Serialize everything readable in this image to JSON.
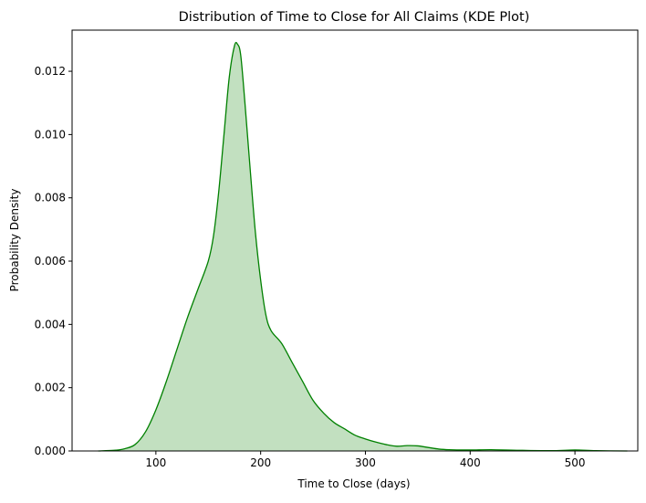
{
  "chart_data": {
    "type": "area",
    "title": "Distribution of Time to Close for All Claims (KDE Plot)",
    "xlabel": "Time to Close (days)",
    "ylabel": "Probability Density",
    "xlim": [
      20,
      560
    ],
    "ylim": [
      0,
      0.0133
    ],
    "xticks": [
      100,
      200,
      300,
      400,
      500
    ],
    "xtick_labels": [
      "100",
      "200",
      "300",
      "400",
      "500"
    ],
    "yticks": [
      0,
      0.002,
      0.004,
      0.006,
      0.008,
      0.01,
      0.012
    ],
    "ytick_labels": [
      "0.000",
      "0.002",
      "0.004",
      "0.006",
      "0.008",
      "0.010",
      "0.012"
    ],
    "grid": false,
    "legend": "none",
    "colors": {
      "line": "#008000",
      "fill": "#c2e0c0"
    },
    "series": [
      {
        "x": [
          45,
          60,
          70,
          80,
          90,
          100,
          110,
          120,
          130,
          140,
          150,
          155,
          160,
          165,
          170,
          175,
          178,
          181,
          185,
          190,
          195,
          200,
          205,
          210,
          220,
          230,
          240,
          250,
          260,
          270,
          280,
          290,
          300,
          310,
          320,
          330,
          340,
          350,
          360,
          370,
          380,
          400,
          420,
          450,
          480,
          500,
          520,
          550
        ],
        "y": [
          0.0,
          2e-05,
          7e-05,
          0.0002,
          0.0006,
          0.0013,
          0.0022,
          0.0032,
          0.0042,
          0.0051,
          0.006,
          0.0068,
          0.0082,
          0.01,
          0.0118,
          0.0128,
          0.01285,
          0.0125,
          0.011,
          0.0089,
          0.0069,
          0.0054,
          0.0043,
          0.0038,
          0.0034,
          0.0028,
          0.0022,
          0.0016,
          0.0012,
          0.0009,
          0.0007,
          0.0005,
          0.00038,
          0.00028,
          0.0002,
          0.00015,
          0.00017,
          0.00016,
          0.00011,
          6e-05,
          4e-05,
          3e-05,
          4e-05,
          2e-05,
          1e-05,
          3e-05,
          1e-05,
          0.0
        ]
      }
    ]
  }
}
